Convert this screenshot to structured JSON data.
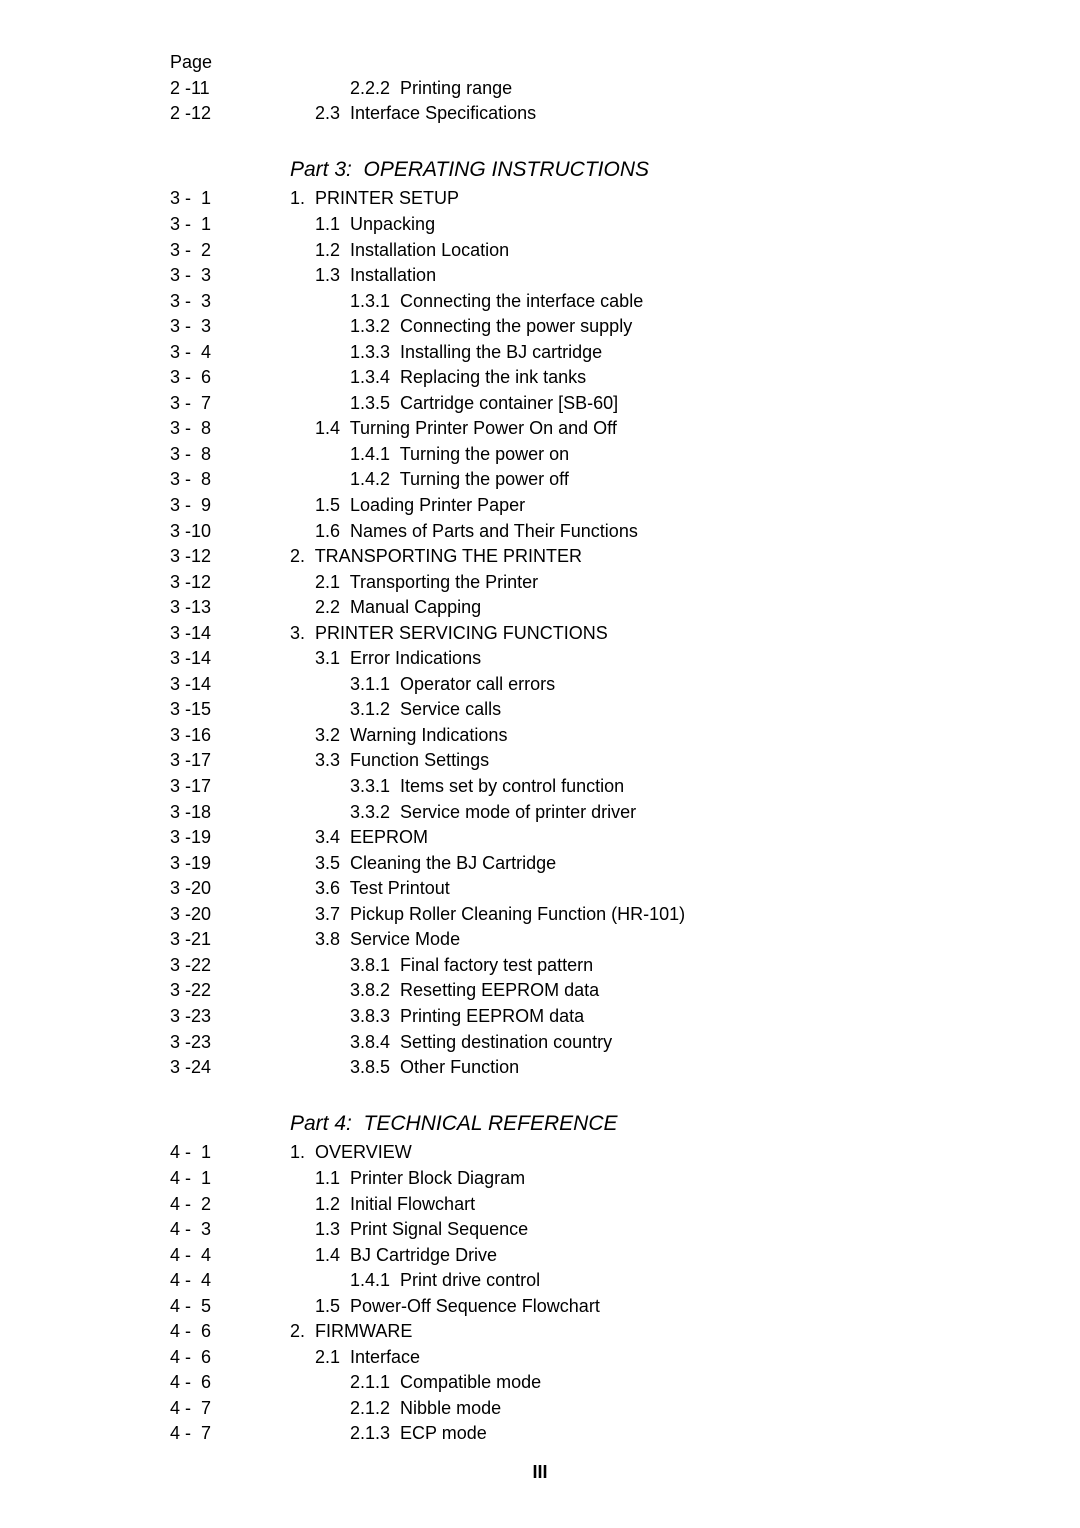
{
  "header_label": "Page",
  "part3_title": "Part 3:  OPERATING INSTRUCTIONS",
  "part4_title": "Part 4:  TECHNICAL REFERENCE",
  "footer": "III",
  "pre_rows": [
    {
      "page": "2 -11",
      "text": "            2.2.2  Printing range"
    },
    {
      "page": "2 -12",
      "text": "     2.3  Interface Specifications"
    }
  ],
  "part3_rows": [
    {
      "page": "3 -  1",
      "text": "1.  PRINTER SETUP"
    },
    {
      "page": "3 -  1",
      "text": "     1.1  Unpacking"
    },
    {
      "page": "3 -  2",
      "text": "     1.2  Installation Location"
    },
    {
      "page": "3 -  3",
      "text": "     1.3  Installation"
    },
    {
      "page": "3 -  3",
      "text": "            1.3.1  Connecting the interface cable"
    },
    {
      "page": "3 -  3",
      "text": "            1.3.2  Connecting the power supply"
    },
    {
      "page": "3 -  4",
      "text": "            1.3.3  Installing the BJ cartridge"
    },
    {
      "page": "3 -  6",
      "text": "            1.3.4  Replacing the ink tanks"
    },
    {
      "page": "3 -  7",
      "text": "            1.3.5  Cartridge container [SB-60]"
    },
    {
      "page": "3 -  8",
      "text": "     1.4  Turning Printer Power On and Off"
    },
    {
      "page": "3 -  8",
      "text": "            1.4.1  Turning the power on"
    },
    {
      "page": "3 -  8",
      "text": "            1.4.2  Turning the power off"
    },
    {
      "page": "3 -  9",
      "text": "     1.5  Loading Printer Paper"
    },
    {
      "page": "3 -10",
      "text": "     1.6  Names of Parts and Their Functions"
    },
    {
      "page": "3 -12",
      "text": "2.  TRANSPORTING THE PRINTER"
    },
    {
      "page": "3 -12",
      "text": "     2.1  Transporting the Printer"
    },
    {
      "page": "3 -13",
      "text": "     2.2  Manual Capping"
    },
    {
      "page": "3 -14",
      "text": "3.  PRINTER SERVICING FUNCTIONS"
    },
    {
      "page": "3 -14",
      "text": "     3.1  Error Indications"
    },
    {
      "page": "3 -14",
      "text": "            3.1.1  Operator call errors"
    },
    {
      "page": "3 -15",
      "text": "            3.1.2  Service calls"
    },
    {
      "page": "3 -16",
      "text": "     3.2  Warning Indications"
    },
    {
      "page": "3 -17",
      "text": "     3.3  Function Settings"
    },
    {
      "page": "3 -17",
      "text": "            3.3.1  Items set by control function"
    },
    {
      "page": "3 -18",
      "text": "            3.3.2  Service mode of printer driver"
    },
    {
      "page": "3 -19",
      "text": "     3.4  EEPROM"
    },
    {
      "page": "3 -19",
      "text": "     3.5  Cleaning the BJ Cartridge"
    },
    {
      "page": "3 -20",
      "text": "     3.6  Test Printout"
    },
    {
      "page": "3 -20",
      "text": "     3.7  Pickup Roller Cleaning Function (HR-101)"
    },
    {
      "page": "3 -21",
      "text": "     3.8  Service Mode"
    },
    {
      "page": "3 -22",
      "text": "            3.8.1  Final factory test pattern"
    },
    {
      "page": "3 -22",
      "text": "            3.8.2  Resetting EEPROM data"
    },
    {
      "page": "3 -23",
      "text": "            3.8.3  Printing EEPROM data"
    },
    {
      "page": "3 -23",
      "text": "            3.8.4  Setting destination country"
    },
    {
      "page": "3 -24",
      "text": "            3.8.5  Other Function"
    }
  ],
  "part4_rows": [
    {
      "page": "4 -  1",
      "text": "1.  OVERVIEW"
    },
    {
      "page": "4 -  1",
      "text": "     1.1  Printer Block Diagram"
    },
    {
      "page": "4 -  2",
      "text": "     1.2  Initial Flowchart"
    },
    {
      "page": "4 -  3",
      "text": "     1.3  Print Signal Sequence"
    },
    {
      "page": "4 -  4",
      "text": "     1.4  BJ Cartridge Drive"
    },
    {
      "page": "4 -  4",
      "text": "            1.4.1  Print drive control"
    },
    {
      "page": "4 -  5",
      "text": "     1.5  Power-Off Sequence Flowchart"
    },
    {
      "page": "4 -  6",
      "text": "2.  FIRMWARE"
    },
    {
      "page": "4 -  6",
      "text": "     2.1  Interface"
    },
    {
      "page": "4 -  6",
      "text": "            2.1.1  Compatible mode"
    },
    {
      "page": "4 -  7",
      "text": "            2.1.2  Nibble mode"
    },
    {
      "page": "4 -  7",
      "text": "            2.1.3  ECP mode"
    }
  ]
}
